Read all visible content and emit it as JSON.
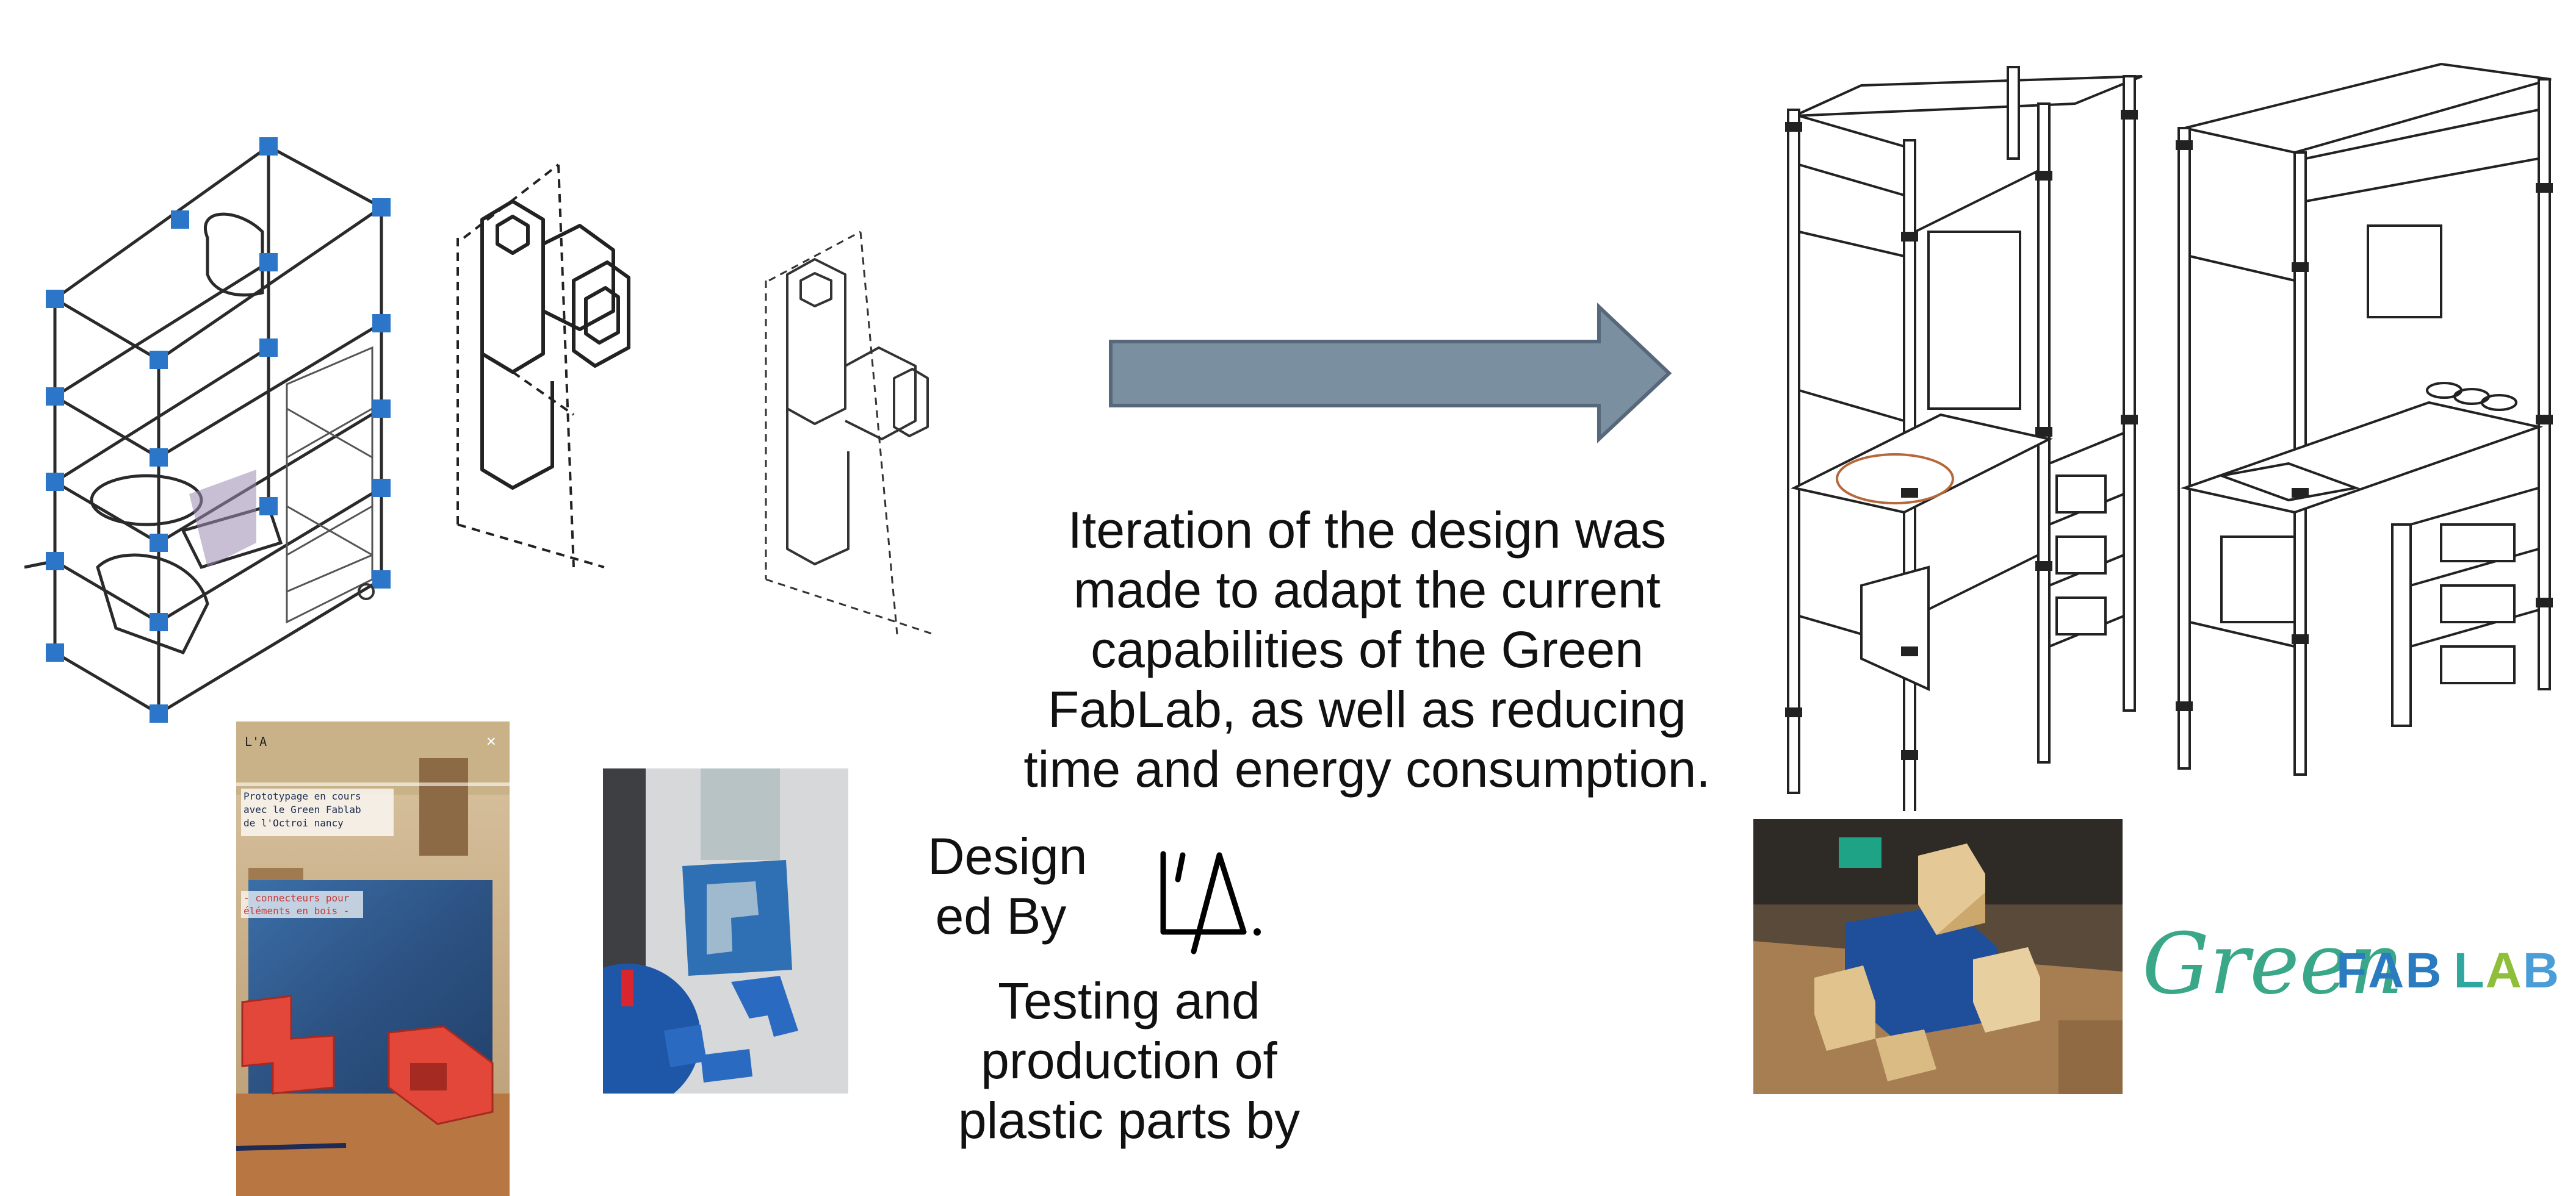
{
  "main_text": "Iteration of the design was made to adapt the current capabilities of the Green FabLab, as well as reducing time and energy consumption.",
  "designed_by_label": "Design ed By",
  "designer_logo_text": "L'A.",
  "testing_text": "Testing and production of plastic parts by",
  "partner_logo": {
    "word_green": "Green",
    "word_fablab": "FAB LAB",
    "letters": [
      {
        "char": "F",
        "color": "#2a7bbf"
      },
      {
        "char": "A",
        "color": "#2a7bbf"
      },
      {
        "char": "B",
        "color": "#2a7bbf"
      },
      {
        "char": " ",
        "color": "#ffffff"
      },
      {
        "char": "L",
        "color": "#2fa7a0"
      },
      {
        "char": "A",
        "color": "#8fbf3a"
      },
      {
        "char": "B",
        "color": "#4a9dd6"
      }
    ]
  },
  "photo_caption": {
    "line1": "Prototypage en cours",
    "line2": "avec le Green Fablab",
    "line3": "de l'Octroi nancy",
    "line4": "- connecteurs pour",
    "line5": "éléments en bois -"
  },
  "colors": {
    "arrow_fill": "#7a8fa0",
    "arrow_stroke": "#56687a",
    "connector_blue": "#2b76c8",
    "sketch_line": "#222222",
    "print_red": "#e2473a",
    "green_text": "#3aa788"
  },
  "images": [
    "furniture-sketch-with-blue-connectors",
    "connector-sketch-1",
    "connector-sketch-2",
    "fablab-prototype-photo",
    "recycled-plastic-tiles-photo",
    "cabinet-line-drawing-left",
    "cabinet-line-drawing-right",
    "wood-connector-photo"
  ]
}
